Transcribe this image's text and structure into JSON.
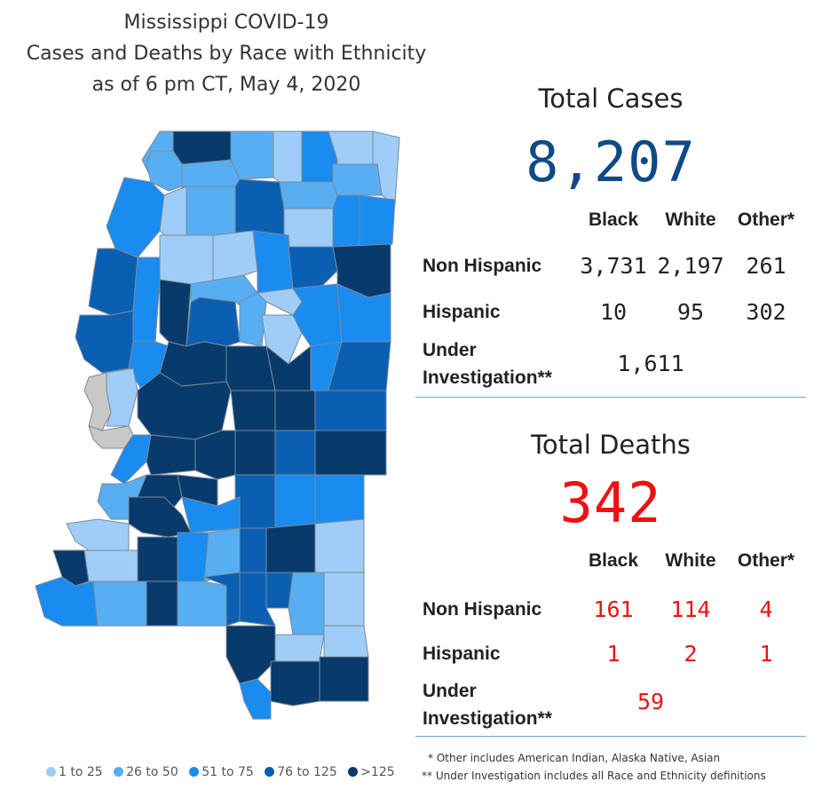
{
  "title": {
    "line1": "Mississippi COVID-19",
    "line2": "Cases and Deaths by Race with Ethnicity",
    "line3": "as of 6 pm CT, May 4, 2020"
  },
  "colors": {
    "c1": "#9fcdf7",
    "c2": "#58aef2",
    "c3": "#1a8cf0",
    "c4": "#0b5fb3",
    "c5": "#083a6b",
    "gray": "#c8c8c8",
    "cases_value": "#0e4a85",
    "deaths_value": "#ee1111"
  },
  "legend": [
    {
      "label": "1 to 25",
      "color": "#9fcdf7"
    },
    {
      "label": "26 to 50",
      "color": "#58aef2"
    },
    {
      "label": "51 to 75",
      "color": "#1a8cf0"
    },
    {
      "label": "76 to 125",
      "color": "#0b5fb3"
    },
    {
      "label": ">125",
      "color": "#083a6b"
    }
  ],
  "cases": {
    "heading": "Total Cases",
    "total": "8,207",
    "columns": [
      "Black",
      "White",
      "Other*"
    ],
    "rows": [
      {
        "label": "Non Hispanic",
        "values": [
          "3,731",
          "2,197",
          "261"
        ]
      },
      {
        "label": "Hispanic",
        "values": [
          "10",
          "95",
          "302"
        ]
      }
    ],
    "under_label_1": "Under",
    "under_label_2": "Investigation**",
    "under_value": "1,611"
  },
  "deaths": {
    "heading": "Total Deaths",
    "total": "342",
    "columns": [
      "Black",
      "White",
      "Other*"
    ],
    "rows": [
      {
        "label": "Non Hispanic",
        "values": [
          "161",
          "114",
          "4"
        ]
      },
      {
        "label": "Hispanic",
        "values": [
          "1",
          "2",
          "1"
        ]
      }
    ],
    "under_label_1": "Under",
    "under_label_2": "Investigation**",
    "under_value": "59"
  },
  "notes": {
    "other": "* Other includes American Indian, Alaska Native, Asian",
    "under": "** Under Investigation includes all Race and Ethnicity definitions"
  }
}
